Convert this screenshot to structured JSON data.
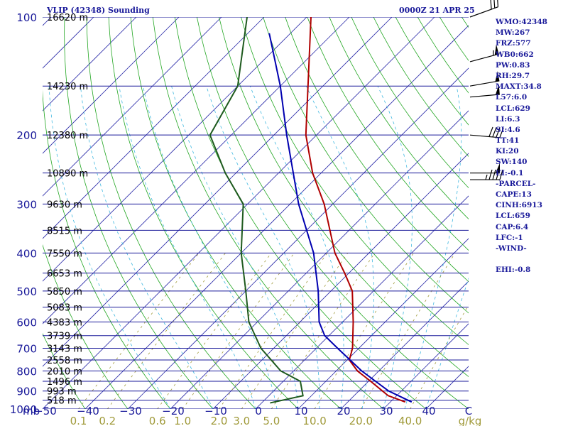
{
  "header": {
    "title": "VLIP (42348) Sounding",
    "time": "0000Z 21 APR 25"
  },
  "indices": [
    "WMO:42348",
    "MW:267",
    "FRZ:577",
    "WB0:662",
    "PW:0.83",
    "RH:29.7",
    "MAXT:34.8",
    "L57:6.0",
    "LCL:629",
    "LI:6.3",
    "SI:4.6",
    "TT:41",
    "KI:20",
    "SW:140",
    "EI:-0.1",
    "-PARCEL-",
    "CAPE:13",
    "CINH:6913",
    "LCL:659",
    "CAP:6.4",
    "LFC:-1",
    "-WIND-",
    "",
    "EHI:-0.8"
  ],
  "colors": {
    "isobar": "#1a1a9a",
    "isotherm": "#2a2aa8",
    "dry_adiabat": "#22a622",
    "moist_adiabat": "#40b8e0",
    "mixing_ratio": "#a09a3a",
    "temperature": "#b00000",
    "dewpoint": "#1e5a1e",
    "parcel": "#0000b0",
    "wind": "#000000",
    "axis_text": "#1a1a9a",
    "mixing_text": "#a09a3a"
  },
  "chart_data": {
    "type": "line",
    "chart_kind": "skew-T log-P sounding",
    "ylabel": "mb",
    "xlabel": "C",
    "pressure_ticks": [
      100,
      200,
      300,
      400,
      500,
      600,
      700,
      800,
      900,
      1000
    ],
    "pressure_range": [
      100,
      1000
    ],
    "y_scale": "log",
    "temperature_ticks": [
      -50,
      -40,
      -30,
      -20,
      -10,
      0,
      10,
      20,
      30,
      40
    ],
    "temperature_range": [
      -50,
      50
    ],
    "mixing_ratio_label": "g/kg",
    "mixing_ratio_ticks": [
      "0.1",
      "0.2",
      "0.6",
      "1.0",
      "2.0",
      "3.0",
      "5.0",
      "10.0",
      "20.0",
      "40.0"
    ],
    "mixing_ratio_values": [
      0.1,
      0.2,
      0.6,
      1.0,
      2.0,
      3.0,
      5.0,
      10.0,
      20.0,
      40.0
    ],
    "height_labels": [
      {
        "p": 100,
        "label": "16620 m"
      },
      {
        "p": 150,
        "label": "14230 m"
      },
      {
        "p": 200,
        "label": "12380 m"
      },
      {
        "p": 250,
        "label": "10890 m"
      },
      {
        "p": 300,
        "label": "9630 m"
      },
      {
        "p": 350,
        "label": "8515 m"
      },
      {
        "p": 400,
        "label": "7550 m"
      },
      {
        "p": 450,
        "label": "6653 m"
      },
      {
        "p": 500,
        "label": "5850 m"
      },
      {
        "p": 550,
        "label": "5083 m"
      },
      {
        "p": 600,
        "label": "4383 m"
      },
      {
        "p": 650,
        "label": "3739 m"
      },
      {
        "p": 700,
        "label": "3143 m"
      },
      {
        "p": 750,
        "label": "2558 m"
      },
      {
        "p": 800,
        "label": "2010 m"
      },
      {
        "p": 850,
        "label": "1496 m"
      },
      {
        "p": 900,
        "label": "993 m"
      },
      {
        "p": 950,
        "label": "518 m"
      }
    ],
    "series": [
      {
        "key": "temperature",
        "points": [
          {
            "p": 960,
            "t": 33.5
          },
          {
            "p": 925,
            "t": 28.0
          },
          {
            "p": 850,
            "t": 20.5
          },
          {
            "p": 800,
            "t": 15.0
          },
          {
            "p": 750,
            "t": 10.5
          },
          {
            "p": 700,
            "t": 8.5
          },
          {
            "p": 600,
            "t": 2.5
          },
          {
            "p": 500,
            "t": -5.0
          },
          {
            "p": 450,
            "t": -11.0
          },
          {
            "p": 400,
            "t": -18.0
          },
          {
            "p": 300,
            "t": -32.0
          },
          {
            "p": 250,
            "t": -42.0
          },
          {
            "p": 200,
            "t": -52.5
          },
          {
            "p": 150,
            "t": -63.5
          },
          {
            "p": 100,
            "t": -79.0
          }
        ]
      },
      {
        "key": "dewpoint",
        "points": [
          {
            "p": 965,
            "t": 2.0
          },
          {
            "p": 925,
            "t": 8.0
          },
          {
            "p": 850,
            "t": 4.0
          },
          {
            "p": 800,
            "t": -3.0
          },
          {
            "p": 700,
            "t": -13.0
          },
          {
            "p": 600,
            "t": -22.0
          },
          {
            "p": 500,
            "t": -30.0
          },
          {
            "p": 400,
            "t": -40.0
          },
          {
            "p": 300,
            "t": -51.0
          },
          {
            "p": 250,
            "t": -62.5
          },
          {
            "p": 200,
            "t": -75.0
          },
          {
            "p": 150,
            "t": -80.0
          },
          {
            "p": 100,
            "t": -94.0
          }
        ]
      },
      {
        "key": "parcel",
        "points": [
          {
            "p": 960,
            "t": 35.0
          },
          {
            "p": 900,
            "t": 27.0
          },
          {
            "p": 800,
            "t": 16.0
          },
          {
            "p": 700,
            "t": 5.0
          },
          {
            "p": 650,
            "t": -1.0
          },
          {
            "p": 600,
            "t": -5.5
          },
          {
            "p": 500,
            "t": -13.0
          },
          {
            "p": 400,
            "t": -23.0
          },
          {
            "p": 300,
            "t": -38.0
          },
          {
            "p": 200,
            "t": -57.0
          },
          {
            "p": 150,
            "t": -70.0
          },
          {
            "p": 110,
            "t": -85.0
          }
        ]
      }
    ],
    "wind_barbs": [
      {
        "p": 100,
        "dir": 250,
        "kt": 30
      },
      {
        "p": 130,
        "dir": 255,
        "kt": 55
      },
      {
        "p": 150,
        "dir": 260,
        "kt": 50
      },
      {
        "p": 160,
        "dir": 265,
        "kt": 50
      },
      {
        "p": 200,
        "dir": 275,
        "kt": 40
      },
      {
        "p": 250,
        "dir": 270,
        "kt": 50
      },
      {
        "p": 260,
        "dir": 270,
        "kt": 45
      }
    ]
  }
}
